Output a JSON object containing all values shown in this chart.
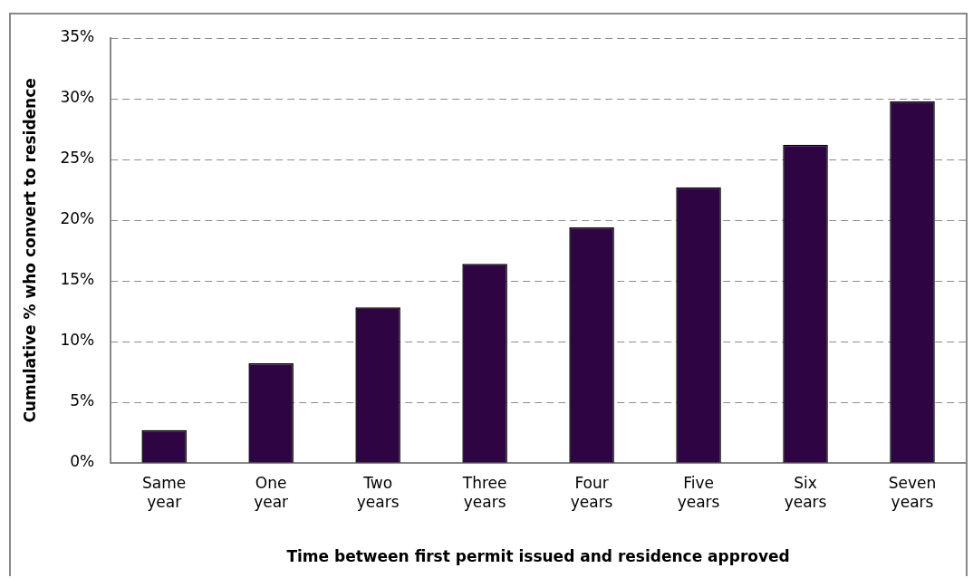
{
  "chart_data": {
    "type": "bar",
    "xlabel": "Time between first permit issued and residence approved",
    "ylabel": "Cumulative % who convert to residence",
    "categories": [
      "Same year",
      "One year",
      "Two years",
      "Three years",
      "Four years",
      "Five years",
      "Six years",
      "Seven years"
    ],
    "values": [
      2.7,
      8.2,
      12.8,
      16.4,
      19.4,
      22.7,
      26.2,
      29.8
    ],
    "color": "#2e0442",
    "ylim": [
      0,
      35
    ],
    "yticks": [
      {
        "value": 0,
        "label": "0%"
      },
      {
        "value": 5,
        "label": "5%"
      },
      {
        "value": 10,
        "label": "10%"
      },
      {
        "value": 15,
        "label": "15%"
      },
      {
        "value": 20,
        "label": "20%"
      },
      {
        "value": 25,
        "label": "25%"
      },
      {
        "value": 30,
        "label": "30%"
      },
      {
        "value": 35,
        "label": "35%"
      }
    ],
    "grid": "y",
    "legend": false
  }
}
